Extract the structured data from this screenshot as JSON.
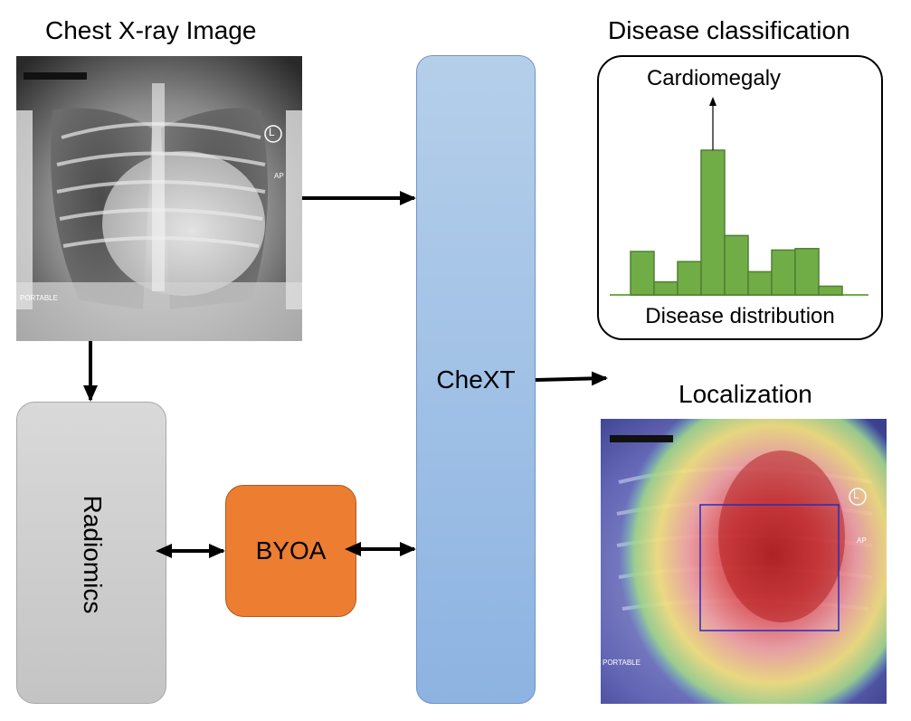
{
  "titles": {
    "xray": "Chest X-ray Image",
    "classification": "Disease classification",
    "localization": "Localization"
  },
  "blocks": {
    "chext": "CheXT",
    "radiomics": "Radiomics",
    "byoa": "BYOA"
  },
  "xray_labels": {
    "marker": "L",
    "ap": "AP",
    "portable": "PORTABLE"
  },
  "classification_panel": {
    "top_label": "Cardiomegaly",
    "bottom_label": "Disease distribution"
  },
  "histogram": {
    "values": [
      0.3,
      0.09,
      0.23,
      1.0,
      0.41,
      0.16,
      0.31,
      0.32,
      0.06
    ],
    "highlight_index": 3,
    "bar_color": "#70ad47",
    "bar_stroke": "#507e32"
  },
  "colors": {
    "chext_fill_top": "#b5cfea",
    "chext_fill_bottom": "#8db3e2",
    "chext_stroke": "#6e94c4",
    "radiomics_fill_top": "#d9d9d9",
    "radiomics_fill_bottom": "#c4c4c4",
    "byoa_fill": "#ed7d31",
    "byoa_stroke": "#ae5a21",
    "bbox_stroke": "#2b2bb8"
  }
}
